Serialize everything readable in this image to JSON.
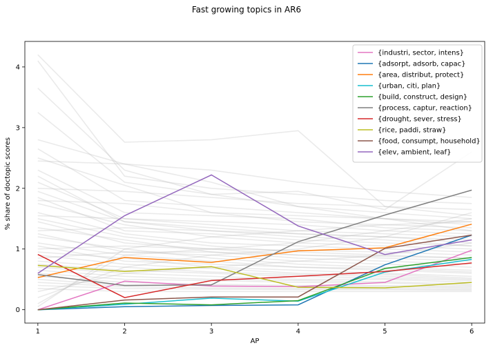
{
  "chart_data": {
    "type": "line",
    "title": "Fast growing topics in AR6",
    "xlabel": "AP",
    "ylabel": "% share of doctopic scores",
    "x": [
      1,
      2,
      3,
      4,
      5,
      6
    ],
    "xticks": [
      "1",
      "2",
      "3",
      "4",
      "5",
      "6"
    ],
    "yticks": [
      "0",
      "1",
      "2",
      "3",
      "4"
    ],
    "xlim": [
      0.85,
      6.15
    ],
    "ylim": [
      -0.22,
      4.42
    ],
    "grid": false,
    "legend_position": "top-right",
    "background_series": [
      [
        4.2,
        2.76,
        2.8,
        2.95,
        1.7,
        1.55
      ],
      [
        4.1,
        2.2,
        2.0,
        1.9,
        1.8,
        1.75
      ],
      [
        3.65,
        2.3,
        1.9,
        1.7,
        1.6,
        1.5
      ],
      [
        3.25,
        2.1,
        1.9,
        1.95,
        1.65,
        2.6
      ],
      [
        2.8,
        2.4,
        2.3,
        2.1,
        1.95,
        1.85
      ],
      [
        2.65,
        1.8,
        1.7,
        1.6,
        1.5,
        1.45
      ],
      [
        2.5,
        2.05,
        1.6,
        1.45,
        1.4,
        1.35
      ],
      [
        2.3,
        1.6,
        1.55,
        1.5,
        1.35,
        1.3
      ],
      [
        2.1,
        1.5,
        1.4,
        1.3,
        1.25,
        1.2
      ],
      [
        1.95,
        1.45,
        1.35,
        1.25,
        1.2,
        1.15
      ],
      [
        1.85,
        1.3,
        1.25,
        1.15,
        1.1,
        1.05
      ],
      [
        1.75,
        1.4,
        1.2,
        1.1,
        1.05,
        1.0
      ],
      [
        1.6,
        1.25,
        1.1,
        1.05,
        1.0,
        0.95
      ],
      [
        1.5,
        1.2,
        1.05,
        0.95,
        0.9,
        0.85
      ],
      [
        1.45,
        1.1,
        1.0,
        0.9,
        0.85,
        0.8
      ],
      [
        1.35,
        1.15,
        0.95,
        0.85,
        0.8,
        0.75
      ],
      [
        1.25,
        0.95,
        0.9,
        0.8,
        0.75,
        0.7
      ],
      [
        1.2,
        1.0,
        0.85,
        0.75,
        0.7,
        0.65
      ],
      [
        1.1,
        0.9,
        0.8,
        0.7,
        0.68,
        0.62
      ],
      [
        1.05,
        0.8,
        0.75,
        0.7,
        0.65,
        0.6
      ],
      [
        0.95,
        0.85,
        0.7,
        0.65,
        0.6,
        0.55
      ],
      [
        0.9,
        0.75,
        0.68,
        0.6,
        0.58,
        0.52
      ],
      [
        0.8,
        0.7,
        0.62,
        0.58,
        0.55,
        0.5
      ],
      [
        0.75,
        0.65,
        0.6,
        0.55,
        0.52,
        0.48
      ],
      [
        0.7,
        0.6,
        0.55,
        0.5,
        0.5,
        0.45
      ],
      [
        0.65,
        0.55,
        0.5,
        0.48,
        0.46,
        0.42
      ],
      [
        0.6,
        0.5,
        0.48,
        0.45,
        0.44,
        0.4
      ],
      [
        0.55,
        0.45,
        0.42,
        0.4,
        0.4,
        0.38
      ],
      [
        0.5,
        0.4,
        0.4,
        0.38,
        0.38,
        0.36
      ],
      [
        0.45,
        0.38,
        0.36,
        0.35,
        0.35,
        0.34
      ],
      [
        0.4,
        0.35,
        0.34,
        0.33,
        0.33,
        0.32
      ],
      [
        0.35,
        0.3,
        0.3,
        0.3,
        0.3,
        0.3
      ],
      [
        0.3,
        0.6,
        0.7,
        0.8,
        0.9,
        1.1
      ],
      [
        0.2,
        0.7,
        0.9,
        1.0,
        1.2,
        1.6
      ],
      [
        0.1,
        0.9,
        1.0,
        1.1,
        1.3,
        1.5
      ],
      [
        0.05,
        1.0,
        1.2,
        1.3,
        1.4,
        1.45
      ],
      [
        1.8,
        1.75,
        1.6,
        1.55,
        1.5,
        1.4
      ],
      [
        2.0,
        1.95,
        1.85,
        1.75,
        1.7,
        1.65
      ],
      [
        1.55,
        1.5,
        1.45,
        1.4,
        1.3,
        1.25
      ],
      [
        1.3,
        1.35,
        1.3,
        1.25,
        1.2,
        1.1
      ],
      [
        2.2,
        1.45,
        1.3,
        1.2,
        1.15,
        1.05
      ],
      [
        0.85,
        0.95,
        0.95,
        0.9,
        0.88,
        0.85
      ],
      [
        1.0,
        1.05,
        1.0,
        0.98,
        0.95,
        0.9
      ],
      [
        2.45,
        2.4,
        2.1,
        1.7,
        1.5,
        1.3
      ]
    ],
    "series": [
      {
        "name": "{industri, sector, intens}",
        "color": "#e377c2",
        "values": [
          0.0,
          0.47,
          0.39,
          0.38,
          0.45,
          0.98
        ]
      },
      {
        "name": "{adsorpt, adsorb, capac}",
        "color": "#1f77b4",
        "values": [
          0.0,
          0.05,
          0.07,
          0.08,
          0.74,
          1.23
        ]
      },
      {
        "name": "{area, distribut, protect}",
        "color": "#ff7f0e",
        "values": [
          0.53,
          0.86,
          0.78,
          0.97,
          1.02,
          1.41
        ]
      },
      {
        "name": "{urban, citi, plan}",
        "color": "#17becf",
        "values": [
          0.0,
          0.09,
          0.19,
          0.14,
          0.62,
          0.83
        ]
      },
      {
        "name": "{build, construct, design}",
        "color": "#2ca02c",
        "values": [
          0.0,
          0.11,
          0.08,
          0.15,
          0.68,
          0.86
        ]
      },
      {
        "name": "{process, captur, reaction}",
        "color": "#7f7f7f",
        "values": [
          0.58,
          0.4,
          0.41,
          1.12,
          1.56,
          1.97
        ]
      },
      {
        "name": "{drought, sever, stress}",
        "color": "#d62728",
        "values": [
          0.91,
          0.2,
          0.48,
          0.55,
          0.63,
          0.77
        ]
      },
      {
        "name": "{rice, paddi, straw}",
        "color": "#bcbd22",
        "values": [
          0.73,
          0.63,
          0.71,
          0.37,
          0.36,
          0.45
        ]
      },
      {
        "name": "{food, consumpt, household}",
        "color": "#8c564b",
        "values": [
          0.0,
          0.16,
          0.21,
          0.21,
          1.01,
          1.23
        ]
      },
      {
        "name": "{elev, ambient, leaf}",
        "color": "#9467bd",
        "values": [
          0.6,
          1.55,
          2.22,
          1.38,
          0.91,
          1.15
        ]
      }
    ]
  }
}
